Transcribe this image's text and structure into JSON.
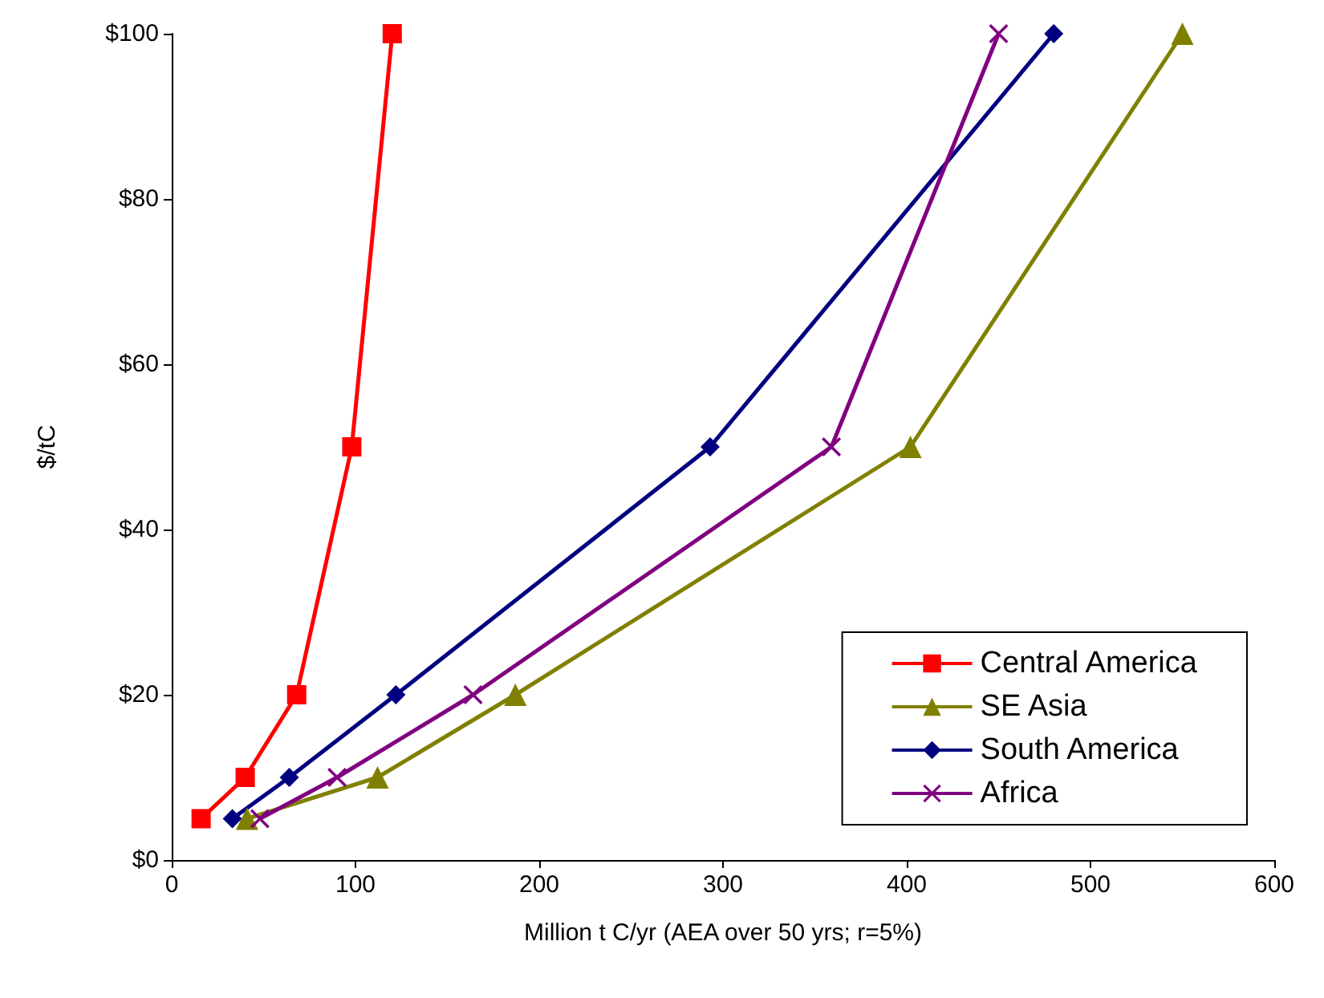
{
  "chart_data": {
    "type": "line",
    "xlabel": "Million t C/yr (AEA over 50 yrs; r=5%)",
    "ylabel": "$/tC",
    "xlim": [
      0,
      600
    ],
    "xticks": [
      0,
      100,
      200,
      300,
      400,
      500,
      600
    ],
    "ylim": [
      0,
      100
    ],
    "yticks": [
      {
        "value": 0,
        "label": "$0"
      },
      {
        "value": 20,
        "label": "$20"
      },
      {
        "value": 40,
        "label": "$40"
      },
      {
        "value": 60,
        "label": "$60"
      },
      {
        "value": 80,
        "label": "$80"
      },
      {
        "value": 100,
        "label": "$100"
      }
    ],
    "grid": false,
    "legend": "bottom right",
    "line_style": "solid",
    "series": [
      {
        "name": "Central America",
        "color": "#ff0000",
        "marker": "square",
        "x": [
          16,
          40,
          68,
          98,
          120
        ],
        "values": [
          5,
          10,
          20,
          50,
          100
        ]
      },
      {
        "name": "SE Asia",
        "color": "#808000",
        "marker": "triangle",
        "x": [
          41,
          112,
          187,
          402,
          550
        ],
        "values": [
          5,
          10,
          20,
          50,
          100
        ]
      },
      {
        "name": "South America",
        "color": "#000080",
        "marker": "diamond",
        "x": [
          33,
          64,
          122,
          293,
          480
        ],
        "values": [
          5,
          10,
          20,
          50,
          100
        ]
      },
      {
        "name": "Africa",
        "color": "#800080",
        "marker": "cross",
        "x": [
          48,
          90,
          164,
          359,
          450
        ],
        "values": [
          5,
          10,
          20,
          50,
          100
        ]
      }
    ]
  }
}
